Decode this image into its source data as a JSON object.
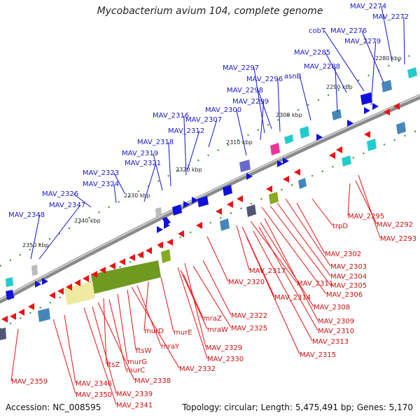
{
  "title": "Mycobacterium avium 104, complete genome",
  "accession": "Accession: NC_008595",
  "summary": "Topology: circular; Length: 5,475,491 bp; Genes: 5,170",
  "colors": {
    "top_strand": "#1010dd",
    "bottom_strand": "#ee1111",
    "backbone": "#888888"
  },
  "ticks": [
    "2280 kbp",
    "2290 kbp",
    "2300 kbp",
    "2310 kbp",
    "2320 kbp",
    "2330 kbp",
    "2340 kbp",
    "2350 kbp"
  ],
  "top_labels": [
    "MAV_2274",
    "MAV_2272",
    "cobT",
    "MAV_2276",
    "MAV_2279",
    "MAV_2285",
    "MAV_2288",
    "asnB",
    "MAV_2297",
    "MAV_2296",
    "MAV_2298",
    "MAV_2299",
    "MAV_2300",
    "MAV_2316",
    "MAV_2307",
    "MAV_2312",
    "MAV_2318",
    "MAV_2319",
    "MAV_2321",
    "MAV_2323",
    "MAV_2324",
    "MAV_2326",
    "MAV_2347",
    "MAV_2348"
  ],
  "bottom_labels": [
    "trpD",
    "MAV_2295",
    "MAV_2292",
    "MAV_2293",
    "MAV_2302",
    "MAV_2303",
    "MAV_2304",
    "MAV_2305",
    "MAV_2306",
    "MAV_2317",
    "MAV_2311",
    "MAV_2320",
    "MAV_2314",
    "MAV_2308",
    "MAV_2309",
    "MAV_2310",
    "MAV_2313",
    "MAV_2315",
    "mraZ",
    "MAV_2322",
    "MAV_2325",
    "mraW",
    "murE",
    "MAV_2329",
    "MAV_2330",
    "murD",
    "mraY",
    "MAV_2332",
    "ftsW",
    "murG",
    "ftsZ",
    "murC",
    "MAV_2338",
    "MAV_2339",
    "MAV_2341",
    "MAV_2346",
    "MAV_2350",
    "MAV_2359"
  ]
}
